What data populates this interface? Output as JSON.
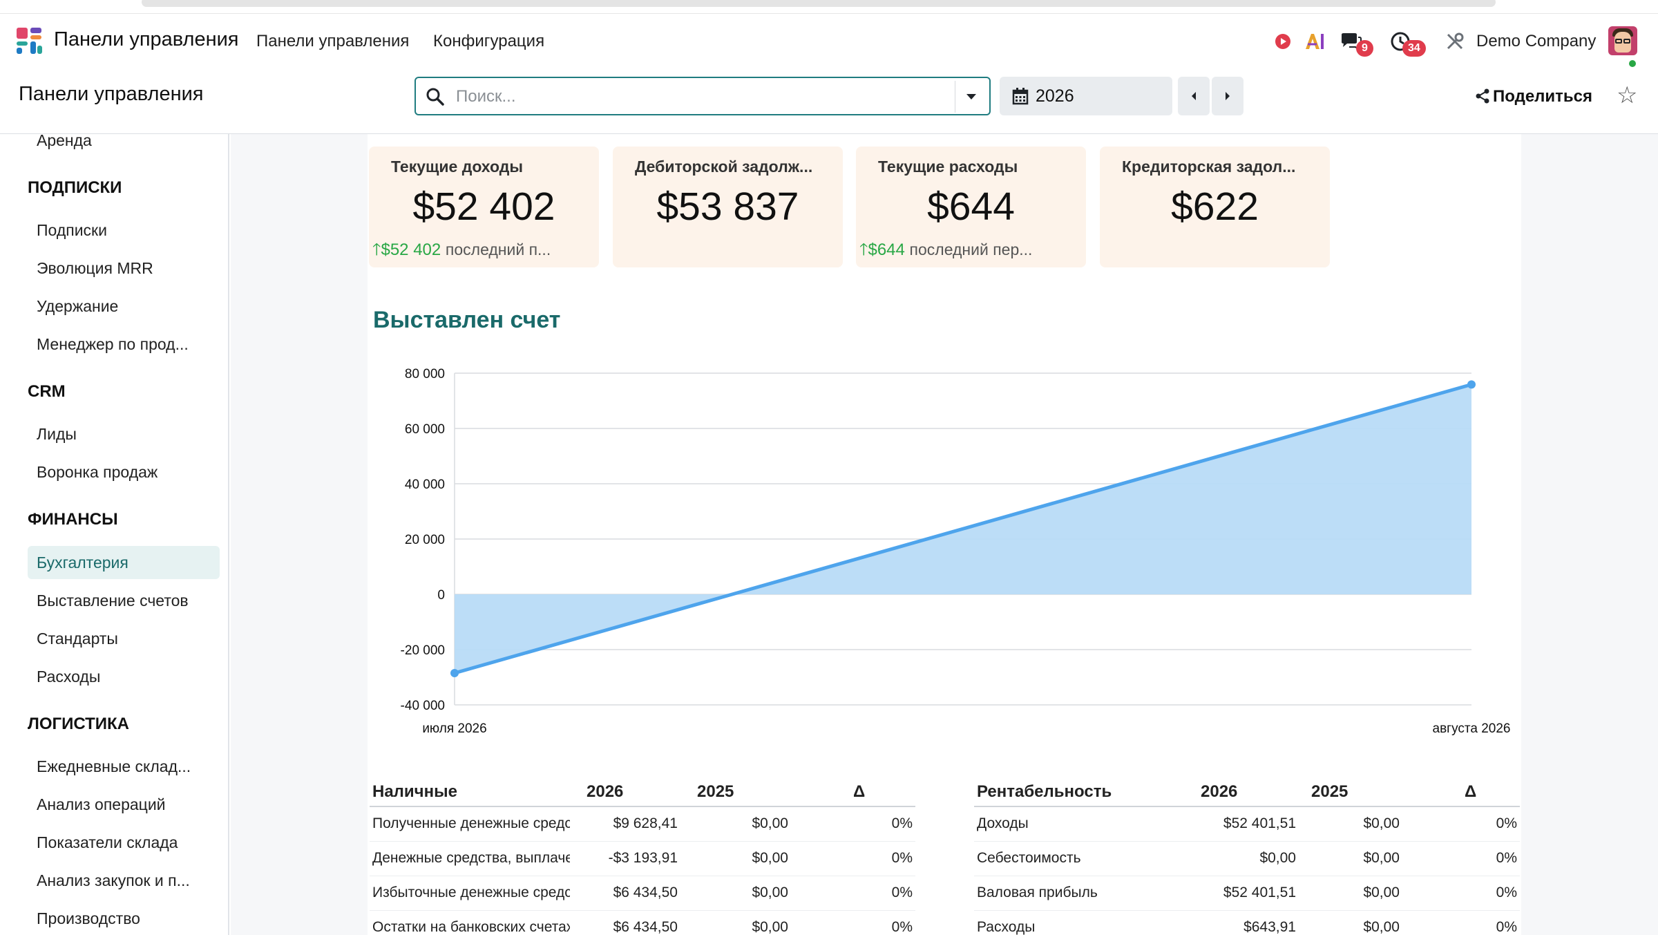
{
  "navbar": {
    "app_name": "Панели управления",
    "menu": [
      "Панели управления",
      "Конфигурация"
    ],
    "messages_badge": "9",
    "activities_badge": "34",
    "company": "Demo Company"
  },
  "control_panel": {
    "title": "Панели управления",
    "search_placeholder": "Поиск...",
    "period": "2026",
    "share_label": "Поделиться"
  },
  "sidebar": {
    "sections": [
      {
        "items": [
          "Аренда"
        ]
      },
      {
        "heading": "ПОДПИСКИ",
        "items": [
          "Подписки",
          "Эволюция MRR",
          "Удержание",
          "Менеджер по прод..."
        ]
      },
      {
        "heading": "CRM",
        "items": [
          "Лиды",
          "Воронка продаж"
        ]
      },
      {
        "heading": "ФИНАНСЫ",
        "items": [
          "Бухгалтерия",
          "Выставление счетов",
          "Стандарты",
          "Расходы"
        ]
      },
      {
        "heading": "ЛОГИСТИКА",
        "items": [
          "Ежедневные склад...",
          "Анализ операций",
          "Показатели склада",
          "Анализ закупок и п...",
          "Производство"
        ]
      }
    ],
    "active_item": "Бухгалтерия"
  },
  "kpis": [
    {
      "title": "Текущие доходы",
      "value": "$52 402",
      "trend_value": "$52 402",
      "trend_label": "последний п..."
    },
    {
      "title": "Дебиторской задолж...",
      "value": "$53 837",
      "trend_value": "",
      "trend_label": ""
    },
    {
      "title": "Текущие расходы",
      "value": "$644",
      "trend_value": "$644",
      "trend_label": "последний пер..."
    },
    {
      "title": "Кредиторская задол...",
      "value": "$622",
      "trend_value": "",
      "trend_label": ""
    }
  ],
  "invoiced": {
    "title": "Выставлен счет"
  },
  "chart_data": {
    "type": "area",
    "title": "Выставлен счет",
    "x": [
      "июля 2026",
      "августа 2026"
    ],
    "series": [
      {
        "values": [
          -28500,
          75900
        ]
      }
    ],
    "ylim": [
      -40000,
      80000
    ],
    "yticks": [
      80000,
      60000,
      40000,
      20000,
      0,
      -20000,
      -40000
    ],
    "ytick_labels": [
      "80 000",
      "60 000",
      "40 000",
      "20 000",
      "0",
      "-20 000",
      "-40 000"
    ],
    "grid": true,
    "colors": {
      "line": "#4ea4ec",
      "fill": "#b8dbf7"
    }
  },
  "cash_table": {
    "headers": [
      "Наличные",
      "2026",
      "2025",
      "Δ"
    ],
    "rows": [
      [
        "Полученные денежные средства",
        "$9 628,41",
        "$0,00",
        "0%"
      ],
      [
        "Денежные средства, выплаченные",
        "-$3 193,91",
        "$0,00",
        "0%"
      ],
      [
        "Избыточные денежные средства",
        "$6 434,50",
        "$0,00",
        "0%"
      ],
      [
        "Остатки на банковских счетах",
        "$6 434,50",
        "$0,00",
        "0%"
      ]
    ]
  },
  "profit_table": {
    "headers": [
      "Рентабельность",
      "2026",
      "2025",
      "Δ"
    ],
    "rows": [
      [
        "Доходы",
        "$52 401,51",
        "$0,00",
        "0%"
      ],
      [
        "Себестоимость",
        "$0,00",
        "$0,00",
        "0%"
      ],
      [
        "Валовая прибыль",
        "$52 401,51",
        "$0,00",
        "0%"
      ],
      [
        "Расходы",
        "$643,91",
        "$0,00",
        "0%"
      ]
    ]
  }
}
